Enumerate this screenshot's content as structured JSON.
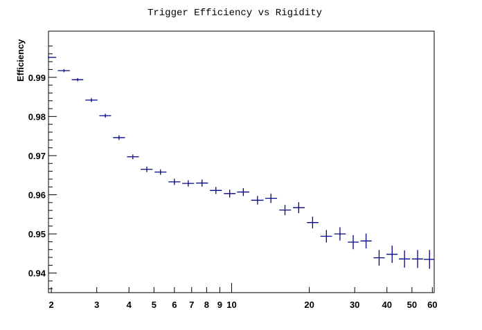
{
  "chart_data": {
    "type": "scatter",
    "title": "Trigger Efficiency vs Rigidity",
    "xlabel": "",
    "ylabel": "Efficiency",
    "x_scale": "log",
    "xlim": [
      1.95,
      61
    ],
    "ylim": [
      0.935,
      1.0018
    ],
    "grid": false,
    "legend": "none",
    "x_ticks": [
      2,
      3,
      4,
      5,
      6,
      7,
      8,
      9,
      10,
      20,
      30,
      40,
      50,
      60
    ],
    "y_ticks": [
      0.94,
      0.95,
      0.96,
      0.97,
      0.98,
      0.99
    ],
    "marker_color": "#000080",
    "series": [
      {
        "points": [
          {
            "x": 1.95,
            "xlo": 1.95,
            "xhi": 2.09,
            "y": 0.9951,
            "yerr": 0.0004
          },
          {
            "x": 2.24,
            "xlo": 2.12,
            "xhi": 2.36,
            "y": 0.9917,
            "yerr": 0.0004
          },
          {
            "x": 2.53,
            "xlo": 2.4,
            "xhi": 2.66,
            "y": 0.9894,
            "yerr": 0.0004
          },
          {
            "x": 2.86,
            "xlo": 2.71,
            "xhi": 3.02,
            "y": 0.9842,
            "yerr": 0.0005
          },
          {
            "x": 3.24,
            "xlo": 3.07,
            "xhi": 3.41,
            "y": 0.9802,
            "yerr": 0.0005
          },
          {
            "x": 3.66,
            "xlo": 3.47,
            "xhi": 3.86,
            "y": 0.9746,
            "yerr": 0.0006
          },
          {
            "x": 4.14,
            "xlo": 3.93,
            "xhi": 4.37,
            "y": 0.9697,
            "yerr": 0.0006
          },
          {
            "x": 4.69,
            "xlo": 4.44,
            "xhi": 4.94,
            "y": 0.9665,
            "yerr": 0.0007
          },
          {
            "x": 5.3,
            "xlo": 5.03,
            "xhi": 5.59,
            "y": 0.9658,
            "yerr": 0.0007
          },
          {
            "x": 6.0,
            "xlo": 5.69,
            "xhi": 6.33,
            "y": 0.9633,
            "yerr": 0.0008
          },
          {
            "x": 6.79,
            "xlo": 6.43,
            "xhi": 7.16,
            "y": 0.9629,
            "yerr": 0.0008
          },
          {
            "x": 7.68,
            "xlo": 7.28,
            "xhi": 8.1,
            "y": 0.963,
            "yerr": 0.0009
          },
          {
            "x": 8.69,
            "xlo": 8.24,
            "xhi": 9.16,
            "y": 0.9611,
            "yerr": 0.0009
          },
          {
            "x": 9.83,
            "xlo": 9.33,
            "xhi": 10.36,
            "y": 0.9603,
            "yerr": 0.001
          },
          {
            "x": 11.1,
            "xlo": 10.5,
            "xhi": 11.7,
            "y": 0.9607,
            "yerr": 0.001
          },
          {
            "x": 12.6,
            "xlo": 11.9,
            "xhi": 13.3,
            "y": 0.9586,
            "yerr": 0.0011
          },
          {
            "x": 14.2,
            "xlo": 13.5,
            "xhi": 15.0,
            "y": 0.9591,
            "yerr": 0.0012
          },
          {
            "x": 16.1,
            "xlo": 15.3,
            "xhi": 17.0,
            "y": 0.9561,
            "yerr": 0.0013
          },
          {
            "x": 18.2,
            "xlo": 17.3,
            "xhi": 19.2,
            "y": 0.9567,
            "yerr": 0.0014
          },
          {
            "x": 20.6,
            "xlo": 19.6,
            "xhi": 21.7,
            "y": 0.9529,
            "yerr": 0.0015
          },
          {
            "x": 23.3,
            "xlo": 22.1,
            "xhi": 24.5,
            "y": 0.9494,
            "yerr": 0.0016
          },
          {
            "x": 26.3,
            "xlo": 25.0,
            "xhi": 27.7,
            "y": 0.95,
            "yerr": 0.0017
          },
          {
            "x": 29.6,
            "xlo": 28.2,
            "xhi": 31.1,
            "y": 0.9479,
            "yerr": 0.0018
          },
          {
            "x": 33.2,
            "xlo": 31.6,
            "xhi": 34.9,
            "y": 0.9482,
            "yerr": 0.0019
          },
          {
            "x": 37.3,
            "xlo": 35.5,
            "xhi": 39.2,
            "y": 0.9439,
            "yerr": 0.002
          },
          {
            "x": 41.9,
            "xlo": 39.8,
            "xhi": 44.0,
            "y": 0.9448,
            "yerr": 0.0022
          },
          {
            "x": 46.8,
            "xlo": 44.5,
            "xhi": 49.2,
            "y": 0.9436,
            "yerr": 0.0022
          },
          {
            "x": 52.6,
            "xlo": 50.0,
            "xhi": 55.2,
            "y": 0.9436,
            "yerr": 0.0023
          },
          {
            "x": 58.5,
            "xlo": 55.6,
            "xhi": 61.0,
            "y": 0.9435,
            "yerr": 0.0024
          }
        ]
      }
    ]
  }
}
